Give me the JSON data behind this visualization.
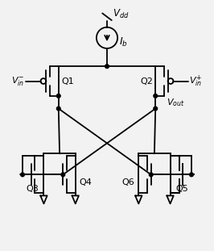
{
  "bg": "#f2f2f2",
  "lc": "black",
  "lw": 1.3,
  "labels": {
    "Vdd": "$V_{dd}$",
    "Ib": "$I_b$",
    "Q1": "Q1",
    "Q2": "Q2",
    "Q3": "Q3",
    "Q4": "Q4",
    "Q5": "Q5",
    "Q6": "Q6",
    "Vin_m": "$V_{in}^{-}$",
    "Vin_p": "$V_{in}^{+}$",
    "Vout": "$V_{out}$"
  },
  "xlim": [
    0,
    10
  ],
  "ylim": [
    0,
    11.5
  ]
}
